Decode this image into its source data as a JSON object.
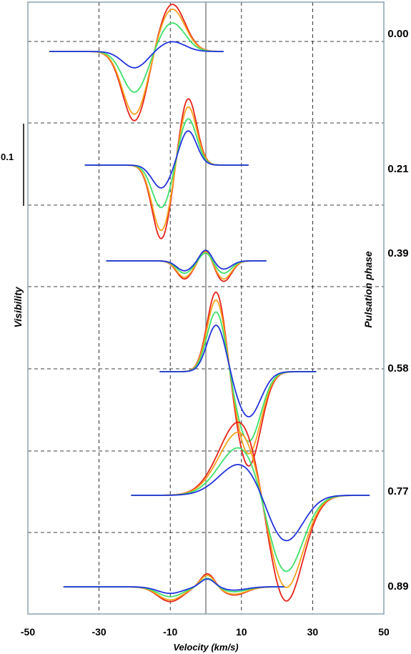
{
  "chart_data": {
    "type": "line",
    "xlabel": "Velocity  (km/s)",
    "ylabel": "Visibility",
    "right_label": "Pulsation phase",
    "scale_bar_label": "0.1",
    "xlim": [
      -50,
      50
    ],
    "x_ticks": [
      -50,
      -30,
      -10,
      10,
      30,
      50
    ],
    "x_tick_labels": [
      "-50",
      "-30",
      "-10",
      "10",
      "30",
      "50"
    ],
    "vertical_reference_line": 0,
    "grid": true,
    "series_colors": [
      "#e8231a",
      "#f5a21b",
      "#3ee06a",
      "#2233dd"
    ],
    "panels": [
      {
        "phase": "0.00",
        "x_range": [
          -44,
          5
        ],
        "series": [
          {
            "color": "#e8231a",
            "components": [
              {
                "center": -20,
                "width": 3.4,
                "amplitude": -0.085
              },
              {
                "center": -9.5,
                "width": 3.6,
                "amplitude": 0.058
              }
            ]
          },
          {
            "color": "#f5a21b",
            "components": [
              {
                "center": -20,
                "width": 3.4,
                "amplitude": -0.077
              },
              {
                "center": -9.5,
                "width": 3.6,
                "amplitude": 0.052
              }
            ]
          },
          {
            "color": "#3ee06a",
            "components": [
              {
                "center": -20,
                "width": 3.4,
                "amplitude": -0.05
              },
              {
                "center": -9.5,
                "width": 3.6,
                "amplitude": 0.035
              }
            ]
          },
          {
            "color": "#2233dd",
            "components": [
              {
                "center": -20,
                "width": 3.4,
                "amplitude": -0.02
              },
              {
                "center": -9.5,
                "width": 3.6,
                "amplitude": 0.012
              }
            ]
          }
        ]
      },
      {
        "phase": "0.21",
        "x_range": [
          -34,
          12
        ],
        "series": [
          {
            "color": "#e8231a",
            "components": [
              {
                "center": -12.5,
                "width": 2.6,
                "amplitude": -0.09
              },
              {
                "center": -5,
                "width": 2.4,
                "amplitude": 0.082
              }
            ]
          },
          {
            "color": "#f5a21b",
            "components": [
              {
                "center": -12.5,
                "width": 2.6,
                "amplitude": -0.08
              },
              {
                "center": -5,
                "width": 2.4,
                "amplitude": 0.072
              }
            ]
          },
          {
            "color": "#3ee06a",
            "components": [
              {
                "center": -12.5,
                "width": 2.6,
                "amplitude": -0.052
              },
              {
                "center": -5,
                "width": 2.4,
                "amplitude": 0.057
              }
            ]
          },
          {
            "color": "#2233dd",
            "components": [
              {
                "center": -12.5,
                "width": 2.6,
                "amplitude": -0.028
              },
              {
                "center": -5,
                "width": 2.4,
                "amplitude": 0.042
              }
            ]
          }
        ]
      },
      {
        "phase": "0.39",
        "x_range": [
          -28,
          17
        ],
        "series": [
          {
            "color": "#e8231a",
            "components": [
              {
                "center": -6,
                "width": 2.2,
                "amplitude": -0.022
              },
              {
                "center": 0,
                "width": 1.6,
                "amplitude": 0.014
              },
              {
                "center": 5,
                "width": 2.2,
                "amplitude": -0.025
              }
            ]
          },
          {
            "color": "#f5a21b",
            "components": [
              {
                "center": -6,
                "width": 2.2,
                "amplitude": -0.02
              },
              {
                "center": 0,
                "width": 1.6,
                "amplitude": 0.013
              },
              {
                "center": 5,
                "width": 2.2,
                "amplitude": -0.022
              }
            ]
          },
          {
            "color": "#3ee06a",
            "components": [
              {
                "center": -6,
                "width": 2.2,
                "amplitude": -0.015
              },
              {
                "center": 0,
                "width": 1.6,
                "amplitude": 0.011
              },
              {
                "center": 5,
                "width": 2.2,
                "amplitude": -0.015
              }
            ]
          },
          {
            "color": "#2233dd",
            "components": [
              {
                "center": -6,
                "width": 2.2,
                "amplitude": -0.012
              },
              {
                "center": 0,
                "width": 1.6,
                "amplitude": 0.014
              },
              {
                "center": 5,
                "width": 2.2,
                "amplitude": -0.01
              }
            ]
          }
        ]
      },
      {
        "phase": "0.58",
        "x_range": [
          -13,
          31
        ],
        "series": [
          {
            "color": "#e8231a",
            "components": [
              {
                "center": 3,
                "width": 2.6,
                "amplitude": 0.1
              },
              {
                "center": 12,
                "width": 3.4,
                "amplitude": -0.115
              }
            ]
          },
          {
            "color": "#f5a21b",
            "components": [
              {
                "center": 3,
                "width": 2.6,
                "amplitude": 0.09
              },
              {
                "center": 12,
                "width": 3.4,
                "amplitude": -0.1
              }
            ]
          },
          {
            "color": "#3ee06a",
            "components": [
              {
                "center": 3,
                "width": 2.6,
                "amplitude": 0.075
              },
              {
                "center": 12,
                "width": 3.4,
                "amplitude": -0.085
              }
            ]
          },
          {
            "color": "#2233dd",
            "components": [
              {
                "center": 3,
                "width": 2.6,
                "amplitude": 0.058
              },
              {
                "center": 12,
                "width": 3.4,
                "amplitude": -0.055
              }
            ]
          }
        ]
      },
      {
        "phase": "0.77",
        "x_range": [
          -21,
          46
        ],
        "series": [
          {
            "color": "#e8231a",
            "components": [
              {
                "center": 10,
                "width": 6,
                "amplitude": 0.095
              },
              {
                "center": 22,
                "width": 5,
                "amplitude": -0.14
              }
            ]
          },
          {
            "color": "#f5a21b",
            "components": [
              {
                "center": 10,
                "width": 6,
                "amplitude": 0.082
              },
              {
                "center": 22,
                "width": 5,
                "amplitude": -0.122
              }
            ]
          },
          {
            "color": "#3ee06a",
            "components": [
              {
                "center": 10,
                "width": 6,
                "amplitude": 0.062
              },
              {
                "center": 22,
                "width": 5,
                "amplitude": -0.1
              }
            ]
          },
          {
            "color": "#2233dd",
            "components": [
              {
                "center": 10,
                "width": 6,
                "amplitude": 0.04
              },
              {
                "center": 22,
                "width": 5,
                "amplitude": -0.06
              }
            ]
          }
        ]
      },
      {
        "phase": "0.89",
        "x_range": [
          -40,
          22
        ],
        "series": [
          {
            "color": "#e8231a",
            "components": [
              {
                "center": -10,
                "width": 3.5,
                "amplitude": -0.018
              },
              {
                "center": 0.5,
                "width": 2.0,
                "amplitude": 0.017
              },
              {
                "center": 8,
                "width": 3.5,
                "amplitude": -0.01
              }
            ]
          },
          {
            "color": "#f5a21b",
            "components": [
              {
                "center": -10,
                "width": 3.5,
                "amplitude": -0.016
              },
              {
                "center": 0.5,
                "width": 2.0,
                "amplitude": 0.015
              },
              {
                "center": 8,
                "width": 3.5,
                "amplitude": -0.009
              }
            ]
          },
          {
            "color": "#3ee06a",
            "components": [
              {
                "center": -10,
                "width": 3.5,
                "amplitude": -0.012
              },
              {
                "center": 0.5,
                "width": 2.0,
                "amplitude": 0.011
              },
              {
                "center": 8,
                "width": 3.5,
                "amplitude": -0.006
              }
            ]
          },
          {
            "color": "#2233dd",
            "components": [
              {
                "center": -10,
                "width": 3.5,
                "amplitude": -0.008
              },
              {
                "center": 0.5,
                "width": 2.0,
                "amplitude": 0.01
              },
              {
                "center": 8,
                "width": 3.5,
                "amplitude": -0.004
              }
            ]
          }
        ]
      }
    ]
  }
}
